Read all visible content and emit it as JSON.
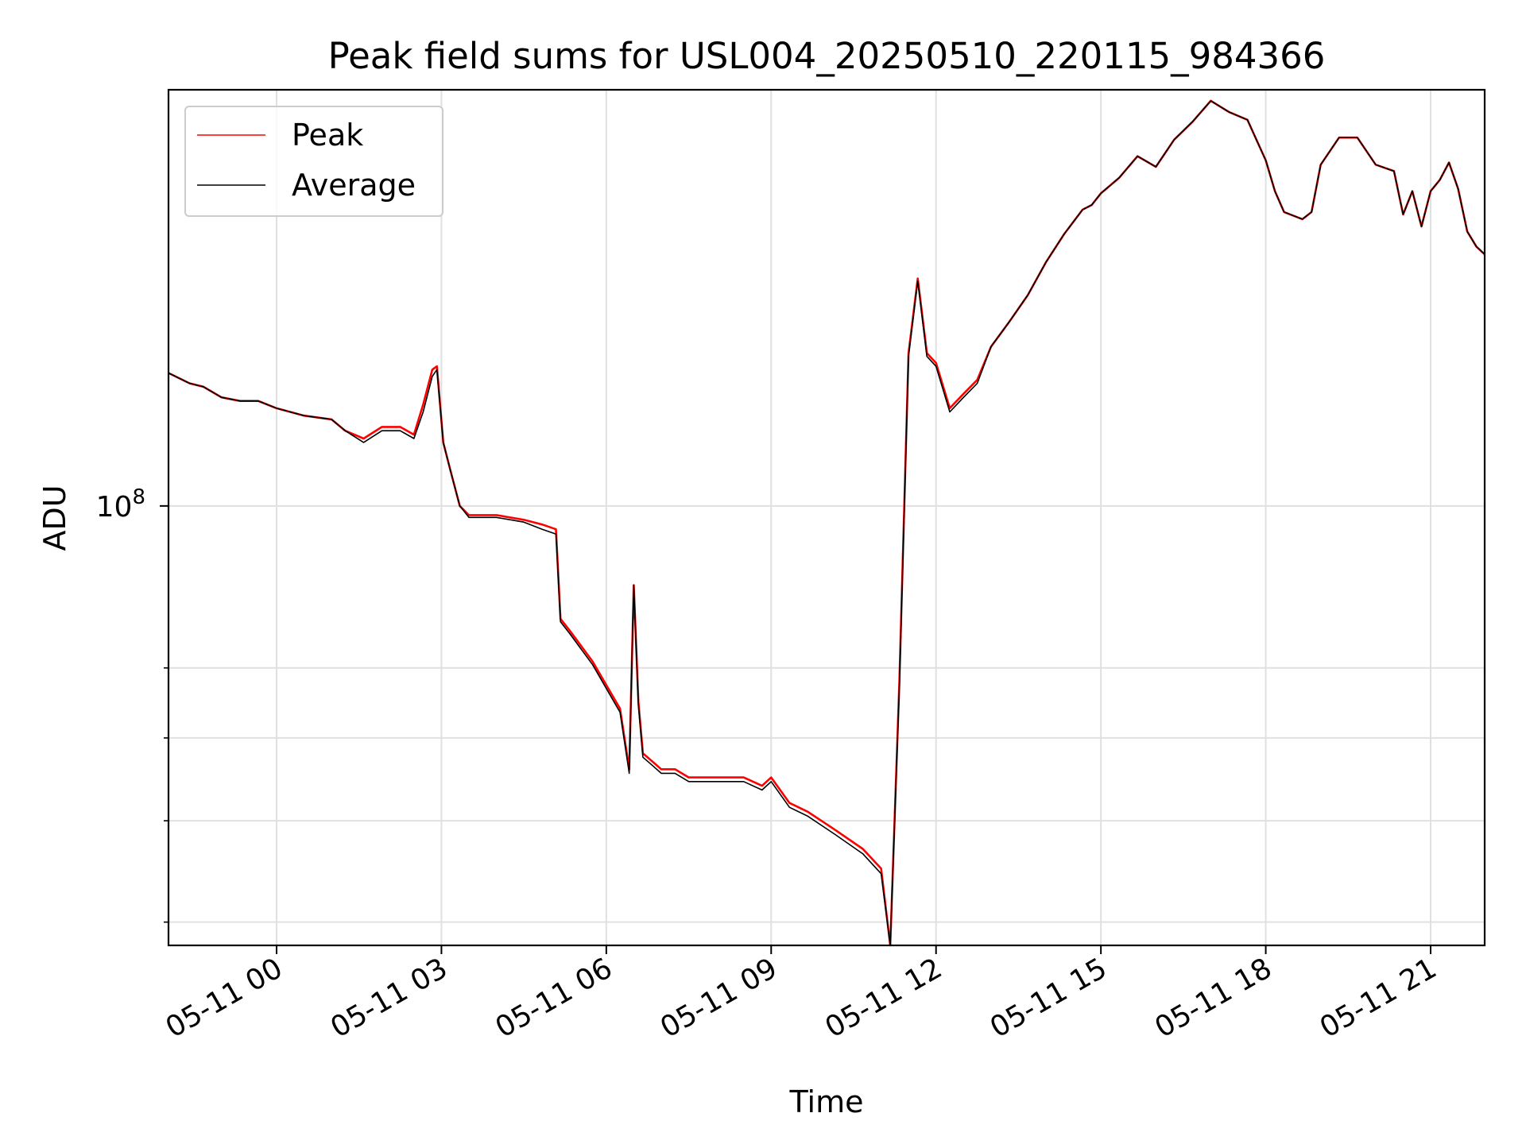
{
  "chart_data": {
    "type": "line",
    "title": "Peak field sums for USL004_20250510_220115_984366",
    "xlabel": "Time",
    "ylabel": "ADU",
    "yscale": "log",
    "xlim": [
      "2025-05-10 22:02",
      "2025-05-11 21:59"
    ],
    "ylim": [
      38000000,
      250000000
    ],
    "xticks": [
      "05-11 00",
      "05-11 03",
      "05-11 06",
      "05-11 09",
      "05-11 12",
      "05-11 15",
      "05-11 18",
      "05-11 21"
    ],
    "ytick_major": {
      "value": 100000000,
      "base": "10",
      "exp": "8"
    },
    "ytick_minor": [
      40000000,
      50000000,
      60000000,
      70000000
    ],
    "grid": true,
    "legend_position": "upper-left",
    "series": [
      {
        "name": "Peak",
        "color": "#ff0000",
        "x": [
          "2025-05-10 22:02",
          "2025-05-10 22:25",
          "2025-05-10 22:40",
          "2025-05-10 23:00",
          "2025-05-10 23:20",
          "2025-05-10 23:40",
          "2025-05-11 00:00",
          "2025-05-11 00:30",
          "2025-05-11 01:00",
          "2025-05-11 01:15",
          "2025-05-11 01:35",
          "2025-05-11 01:55",
          "2025-05-11 02:15",
          "2025-05-11 02:30",
          "2025-05-11 02:40",
          "2025-05-11 02:50",
          "2025-05-11 02:55",
          "2025-05-11 03:02",
          "2025-05-11 03:10",
          "2025-05-11 03:20",
          "2025-05-11 03:30",
          "2025-05-11 04:00",
          "2025-05-11 04:30",
          "2025-05-11 04:50",
          "2025-05-11 05:05",
          "2025-05-11 05:10",
          "2025-05-11 05:20",
          "2025-05-11 05:45",
          "2025-05-11 06:15",
          "2025-05-11 06:25",
          "2025-05-11 06:30",
          "2025-05-11 06:35",
          "2025-05-11 06:40",
          "2025-05-11 06:50",
          "2025-05-11 07:00",
          "2025-05-11 07:15",
          "2025-05-11 07:30",
          "2025-05-11 08:00",
          "2025-05-11 08:30",
          "2025-05-11 08:50",
          "2025-05-11 09:00",
          "2025-05-11 09:20",
          "2025-05-11 09:40",
          "2025-05-11 10:10",
          "2025-05-11 10:40",
          "2025-05-11 11:00",
          "2025-05-11 11:10",
          "2025-05-11 11:20",
          "2025-05-11 11:30",
          "2025-05-11 11:40",
          "2025-05-11 11:50",
          "2025-05-11 12:00",
          "2025-05-11 12:15",
          "2025-05-11 12:30",
          "2025-05-11 12:45",
          "2025-05-11 13:00",
          "2025-05-11 13:20",
          "2025-05-11 13:40",
          "2025-05-11 14:00",
          "2025-05-11 14:20",
          "2025-05-11 14:40",
          "2025-05-11 14:50",
          "2025-05-11 15:00",
          "2025-05-11 15:20",
          "2025-05-11 15:40",
          "2025-05-11 16:00",
          "2025-05-11 16:20",
          "2025-05-11 16:40",
          "2025-05-11 17:00",
          "2025-05-11 17:20",
          "2025-05-11 17:40",
          "2025-05-11 18:00",
          "2025-05-11 18:10",
          "2025-05-11 18:20",
          "2025-05-11 18:40",
          "2025-05-11 18:50",
          "2025-05-11 19:00",
          "2025-05-11 19:20",
          "2025-05-11 19:40",
          "2025-05-11 20:00",
          "2025-05-11 20:20",
          "2025-05-11 20:30",
          "2025-05-11 20:40",
          "2025-05-11 20:50",
          "2025-05-11 21:00",
          "2025-05-11 21:10",
          "2025-05-11 21:20",
          "2025-05-11 21:30",
          "2025-05-11 21:40",
          "2025-05-11 21:50",
          "2025-05-11 21:59"
        ],
        "y": [
          134000000,
          131000000,
          130000000,
          127000000,
          126000000,
          126000000,
          124000000,
          122000000,
          121000000,
          118000000,
          116000000,
          119000000,
          119000000,
          117000000,
          125000000,
          135000000,
          136000000,
          115000000,
          108000000,
          100000000,
          98000000,
          98000000,
          97000000,
          96000000,
          95000000,
          78000000,
          76000000,
          71000000,
          64000000,
          56000000,
          84000000,
          65000000,
          58000000,
          57000000,
          56000000,
          56000000,
          55000000,
          55000000,
          55000000,
          54000000,
          55000000,
          52000000,
          51000000,
          49000000,
          47000000,
          45000000,
          38000000,
          68000000,
          140000000,
          165000000,
          140000000,
          137000000,
          124000000,
          128000000,
          132000000,
          142000000,
          150000000,
          159000000,
          171000000,
          182000000,
          192000000,
          194000000,
          199000000,
          206000000,
          216000000,
          211000000,
          224000000,
          233000000,
          244000000,
          238000000,
          234000000,
          214000000,
          200000000,
          191000000,
          188000000,
          191000000,
          212000000,
          225000000,
          225000000,
          212000000,
          209000000,
          190000000,
          200000000,
          185000000,
          200000000,
          205000000,
          213000000,
          201000000,
          183000000,
          177000000,
          174000000
        ]
      },
      {
        "name": "Average",
        "color": "#000000",
        "x": [
          "2025-05-10 22:02",
          "2025-05-10 22:25",
          "2025-05-10 22:40",
          "2025-05-10 23:00",
          "2025-05-10 23:20",
          "2025-05-10 23:40",
          "2025-05-11 00:00",
          "2025-05-11 00:30",
          "2025-05-11 01:00",
          "2025-05-11 01:15",
          "2025-05-11 01:35",
          "2025-05-11 01:55",
          "2025-05-11 02:15",
          "2025-05-11 02:30",
          "2025-05-11 02:40",
          "2025-05-11 02:50",
          "2025-05-11 02:55",
          "2025-05-11 03:02",
          "2025-05-11 03:10",
          "2025-05-11 03:20",
          "2025-05-11 03:30",
          "2025-05-11 04:00",
          "2025-05-11 04:30",
          "2025-05-11 04:50",
          "2025-05-11 05:05",
          "2025-05-11 05:10",
          "2025-05-11 05:20",
          "2025-05-11 05:45",
          "2025-05-11 06:15",
          "2025-05-11 06:25",
          "2025-05-11 06:30",
          "2025-05-11 06:35",
          "2025-05-11 06:40",
          "2025-05-11 06:50",
          "2025-05-11 07:00",
          "2025-05-11 07:15",
          "2025-05-11 07:30",
          "2025-05-11 08:00",
          "2025-05-11 08:30",
          "2025-05-11 08:50",
          "2025-05-11 09:00",
          "2025-05-11 09:20",
          "2025-05-11 09:40",
          "2025-05-11 10:10",
          "2025-05-11 10:40",
          "2025-05-11 11:00",
          "2025-05-11 11:10",
          "2025-05-11 11:20",
          "2025-05-11 11:30",
          "2025-05-11 11:40",
          "2025-05-11 11:50",
          "2025-05-11 12:00",
          "2025-05-11 12:15",
          "2025-05-11 12:30",
          "2025-05-11 12:45",
          "2025-05-11 13:00",
          "2025-05-11 13:20",
          "2025-05-11 13:40",
          "2025-05-11 14:00",
          "2025-05-11 14:20",
          "2025-05-11 14:40",
          "2025-05-11 14:50",
          "2025-05-11 15:00",
          "2025-05-11 15:20",
          "2025-05-11 15:40",
          "2025-05-11 16:00",
          "2025-05-11 16:20",
          "2025-05-11 16:40",
          "2025-05-11 17:00",
          "2025-05-11 17:20",
          "2025-05-11 17:40",
          "2025-05-11 18:00",
          "2025-05-11 18:10",
          "2025-05-11 18:20",
          "2025-05-11 18:40",
          "2025-05-11 18:50",
          "2025-05-11 19:00",
          "2025-05-11 19:20",
          "2025-05-11 19:40",
          "2025-05-11 20:00",
          "2025-05-11 20:20",
          "2025-05-11 20:30",
          "2025-05-11 20:40",
          "2025-05-11 20:50",
          "2025-05-11 21:00",
          "2025-05-11 21:10",
          "2025-05-11 21:20",
          "2025-05-11 21:30",
          "2025-05-11 21:40",
          "2025-05-11 21:50",
          "2025-05-11 21:59"
        ],
        "y": [
          134000000,
          131000000,
          130000000,
          127000000,
          126000000,
          126000000,
          124000000,
          122000000,
          121000000,
          118000000,
          115000000,
          118000000,
          118000000,
          116000000,
          123000000,
          133000000,
          135000000,
          115000000,
          108000000,
          100000000,
          97500000,
          97500000,
          96500000,
          95000000,
          94000000,
          77500000,
          75500000,
          70500000,
          63500000,
          55500000,
          84000000,
          64500000,
          57500000,
          56500000,
          55500000,
          55500000,
          54500000,
          54500000,
          54500000,
          53500000,
          54500000,
          51500000,
          50500000,
          48500000,
          46500000,
          44500000,
          38000000,
          67000000,
          139000000,
          164000000,
          139000000,
          136000000,
          123000000,
          127000000,
          131000000,
          142000000,
          150000000,
          159000000,
          171000000,
          182000000,
          192000000,
          194000000,
          199000000,
          206000000,
          216000000,
          211000000,
          224000000,
          233000000,
          244000000,
          238000000,
          234000000,
          214000000,
          200000000,
          191000000,
          188000000,
          191000000,
          212000000,
          225000000,
          225000000,
          212000000,
          209000000,
          190000000,
          200000000,
          185000000,
          200000000,
          205000000,
          213000000,
          201000000,
          183000000,
          177000000,
          174000000
        ]
      }
    ]
  }
}
